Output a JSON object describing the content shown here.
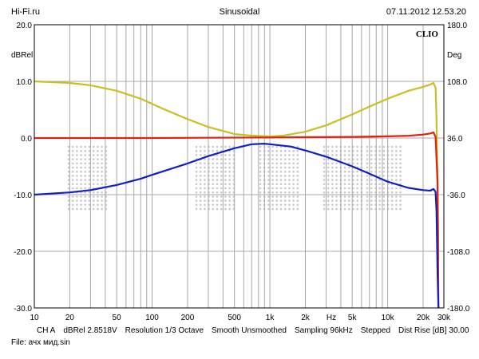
{
  "header": {
    "left": "Hi-Fi.ru",
    "center": "Sinusoidal",
    "right": "07.11.2012 12.53.20"
  },
  "footer": {
    "items": [
      "CH A",
      "dBRel 2.8518V",
      "Resolution 1/3 Octave",
      "Smooth Unsmoothed",
      "Sampling 96kHz",
      "Stepped",
      "Dist Rise [dB] 30.00"
    ],
    "file": "File: ачх мид.sin"
  },
  "chart_data": {
    "type": "line",
    "brand": "CLIO",
    "xscale": "log",
    "xlim": [
      10,
      30000
    ],
    "xlabel": "Hz",
    "x_tick_labels": [
      {
        "x": 10,
        "label": "10"
      },
      {
        "x": 20,
        "label": "20"
      },
      {
        "x": 50,
        "label": "50"
      },
      {
        "x": 100,
        "label": "100"
      },
      {
        "x": 200,
        "label": "200"
      },
      {
        "x": 500,
        "label": "500"
      },
      {
        "x": 1000,
        "label": "1k"
      },
      {
        "x": 2000,
        "label": "2k"
      },
      {
        "x": 5000,
        "label": "5k"
      },
      {
        "x": 10000,
        "label": "10k"
      },
      {
        "x": 20000,
        "label": "20k"
      },
      {
        "x": 30000,
        "label": "30k"
      }
    ],
    "ylim": [
      -30,
      20
    ],
    "ylabel": "dBRel",
    "y_ticks": [
      20,
      10,
      0,
      -10,
      -20,
      -30
    ],
    "y_tick_labels": [
      "20.0",
      "10.0",
      "0.0",
      "-10.0",
      "-20.0",
      "-30.0"
    ],
    "y2lim": [
      -180,
      180
    ],
    "y2label": "Deg",
    "y2_ticks": [
      180,
      108,
      36,
      -36,
      -108,
      -180
    ],
    "y2_tick_labels": [
      "180.0",
      "108.0",
      "36.0",
      "-36.0",
      "-108.0",
      "-180.0"
    ],
    "grid": true,
    "colors": {
      "background": "#ffffff",
      "grid": "#a8a8a8",
      "frame": "#000000",
      "watermark": "#c8c8c8"
    },
    "series": [
      {
        "color": "#c8c020",
        "axis": "y2",
        "points": [
          [
            10,
            108
          ],
          [
            20,
            106
          ],
          [
            30,
            103
          ],
          [
            50,
            96
          ],
          [
            80,
            86
          ],
          [
            120,
            74
          ],
          [
            200,
            60
          ],
          [
            300,
            50
          ],
          [
            500,
            41
          ],
          [
            700,
            39
          ],
          [
            1000,
            38
          ],
          [
            1300,
            39
          ],
          [
            2000,
            44
          ],
          [
            3000,
            52
          ],
          [
            5000,
            66
          ],
          [
            7000,
            76
          ],
          [
            10000,
            86
          ],
          [
            15000,
            96
          ],
          [
            20000,
            101
          ],
          [
            23000,
            104
          ],
          [
            24500,
            106
          ],
          [
            25500,
            100
          ],
          [
            26000,
            60
          ],
          [
            26500,
            -20
          ],
          [
            27000,
            -120
          ]
        ]
      },
      {
        "color": "#e02010",
        "axis": "y",
        "points": [
          [
            10,
            0
          ],
          [
            100,
            0
          ],
          [
            1000,
            0.1
          ],
          [
            5000,
            0.2
          ],
          [
            10000,
            0.3
          ],
          [
            15000,
            0.4
          ],
          [
            20000,
            0.6
          ],
          [
            23000,
            0.8
          ],
          [
            24500,
            1.0
          ],
          [
            25500,
            0.2
          ],
          [
            26500,
            -8
          ],
          [
            27000,
            -30
          ]
        ]
      },
      {
        "color": "#1020c0",
        "axis": "y",
        "points": [
          [
            10,
            -10
          ],
          [
            20,
            -9.6
          ],
          [
            30,
            -9.2
          ],
          [
            50,
            -8.3
          ],
          [
            80,
            -7.2
          ],
          [
            100,
            -6.5
          ],
          [
            200,
            -4.5
          ],
          [
            300,
            -3.2
          ],
          [
            500,
            -1.8
          ],
          [
            700,
            -1.1
          ],
          [
            900,
            -1.0
          ],
          [
            1000,
            -1.1
          ],
          [
            1500,
            -1.5
          ],
          [
            2000,
            -2.2
          ],
          [
            3000,
            -3.3
          ],
          [
            5000,
            -5.0
          ],
          [
            7000,
            -6.3
          ],
          [
            10000,
            -7.7
          ],
          [
            15000,
            -8.8
          ],
          [
            20000,
            -9.2
          ],
          [
            23000,
            -9.3
          ],
          [
            24500,
            -9.0
          ],
          [
            25500,
            -9.5
          ],
          [
            26000,
            -13
          ],
          [
            26500,
            -24
          ],
          [
            27000,
            -30
          ]
        ]
      }
    ]
  }
}
